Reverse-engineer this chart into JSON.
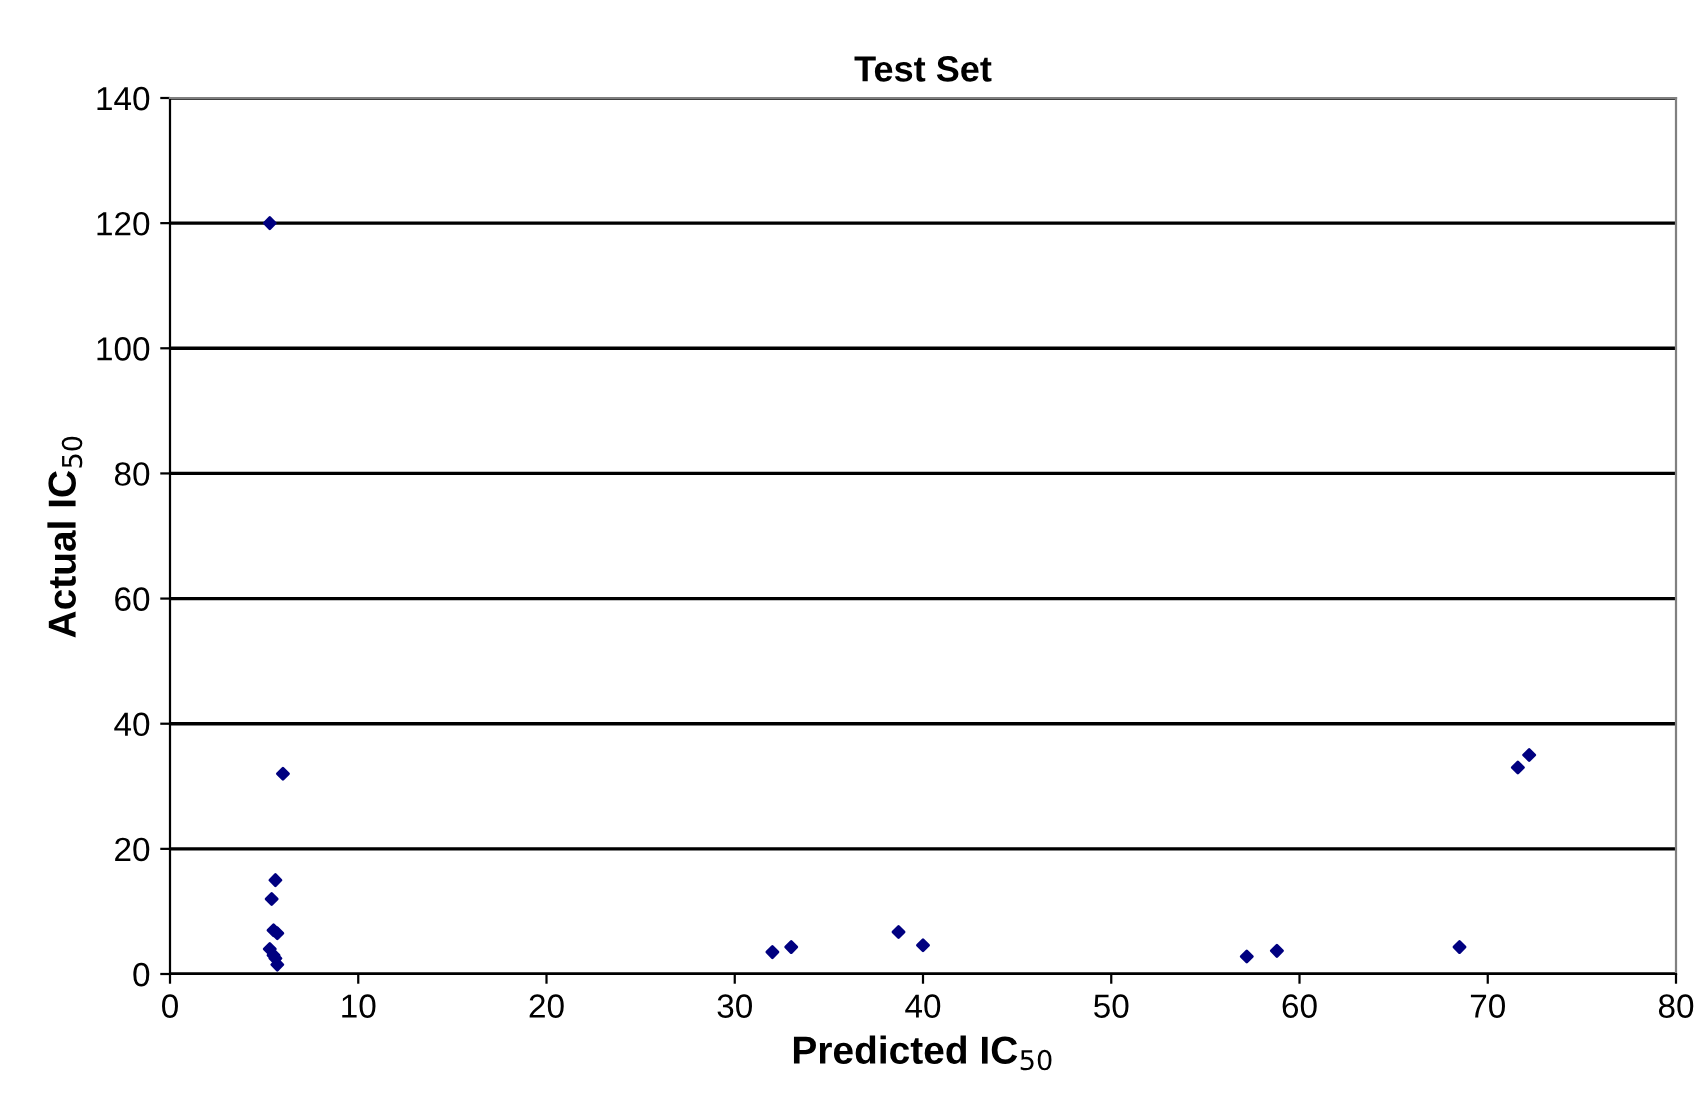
{
  "chart_data": {
    "type": "scatter",
    "title": "Test Set",
    "xlabel": "Predicted IC$_{50}$",
    "ylabel": "Actual IC$_{50}$",
    "x": [
      5.3,
      6.0,
      5.6,
      5.4,
      5.5,
      5.7,
      5.3,
      5.5,
      5.6,
      5.7,
      32,
      33,
      38.7,
      40,
      57.2,
      58.8,
      68.5,
      71.6,
      72.2
    ],
    "series": [
      {
        "color": "#000080",
        "values": [
          120,
          32,
          15,
          12,
          7,
          6.5,
          4,
          3,
          2.5,
          1.5,
          3.5,
          4.3,
          6.7,
          4.6,
          2.8,
          3.7,
          4.3,
          33,
          35
        ]
      }
    ],
    "xlim": [
      0,
      80
    ],
    "xticks": [
      0,
      10,
      20,
      30,
      40,
      50,
      60,
      70,
      80
    ],
    "ylim": [
      0,
      140
    ],
    "yticks": [
      0,
      20,
      40,
      60,
      80,
      100,
      120,
      140
    ],
    "grid": "y",
    "marker": "diamond"
  }
}
